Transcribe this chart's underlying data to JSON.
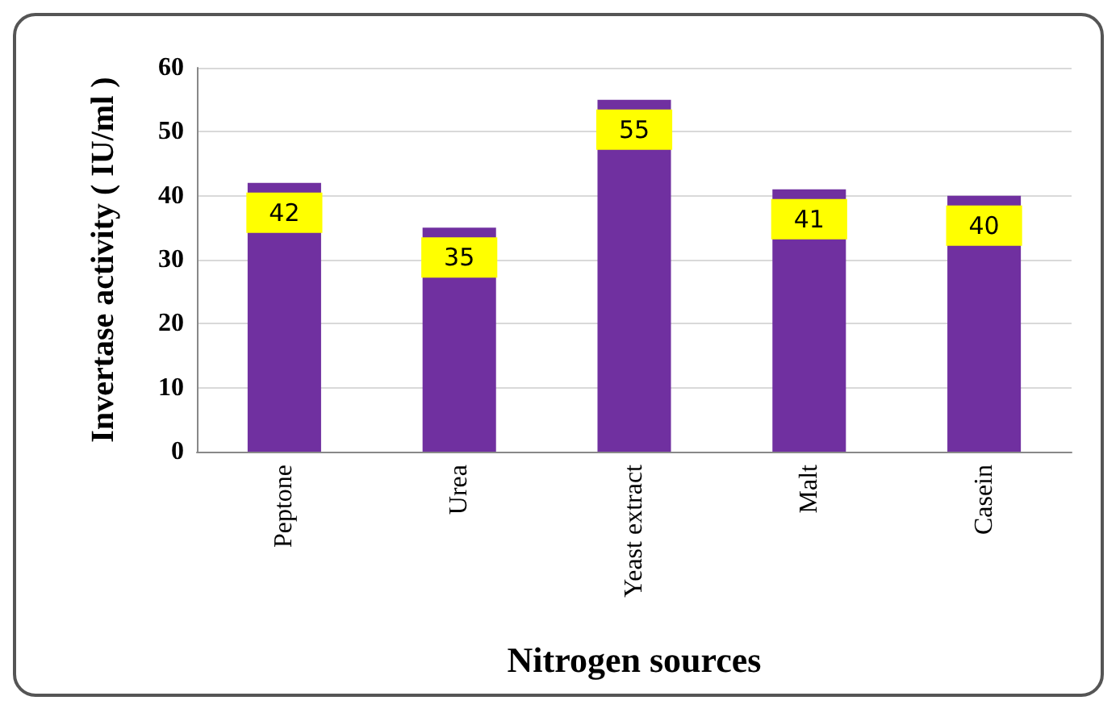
{
  "chart_data": {
    "type": "bar",
    "xlabel": "Nitrogen sources",
    "ylabel": "Invertase activity ( IU/ml )",
    "categories": [
      "Peptone",
      "Urea",
      "Yeast extract",
      "Malt",
      "Casein"
    ],
    "values": [
      42,
      35,
      55,
      41,
      40
    ],
    "color": "#7030a0",
    "ylim": [
      0,
      60
    ],
    "yticks": [
      0,
      10,
      20,
      30,
      40,
      50,
      60
    ],
    "grid": "y",
    "data_labels": true
  }
}
